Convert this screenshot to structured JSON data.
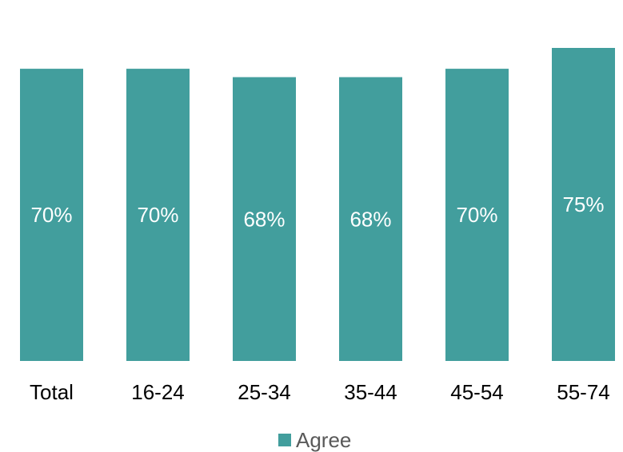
{
  "chart_data": {
    "type": "bar",
    "categories": [
      "Total",
      "16-24",
      "25-34",
      "35-44",
      "45-54",
      "55-74"
    ],
    "series": [
      {
        "name": "Agree",
        "values": [
          70,
          70,
          68,
          68,
          70,
          75
        ],
        "labels": [
          "70%",
          "70%",
          "68%",
          "68%",
          "70%",
          "75%"
        ],
        "color": "#429E9D"
      }
    ],
    "legend": {
      "position": "bottom",
      "label": "Agree"
    },
    "ylim": [
      0,
      75
    ],
    "grid": false
  }
}
